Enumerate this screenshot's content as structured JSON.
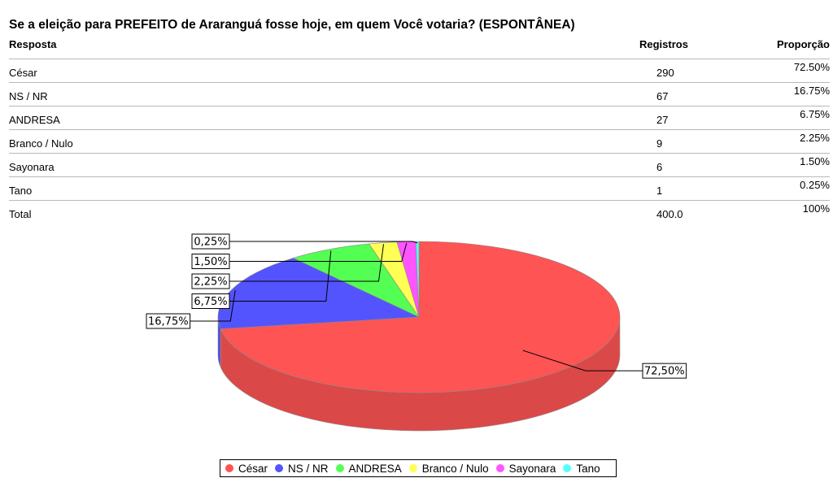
{
  "title": "Se a eleição para PREFEITO de Araranguá fosse hoje, em quem Você votaria? (ESPONTÂNEA)",
  "table": {
    "headers": [
      "Resposta",
      "Registros",
      "Proporção"
    ],
    "rows": [
      {
        "label": "César",
        "count": "290",
        "pct": "72.50%"
      },
      {
        "label": "NS / NR",
        "count": "67",
        "pct": "16.75%"
      },
      {
        "label": "ANDRESA",
        "count": "27",
        "pct": "6.75%"
      },
      {
        "label": "Branco / Nulo",
        "count": "9",
        "pct": "2.25%"
      },
      {
        "label": "Sayonara",
        "count": "6",
        "pct": "1.50%"
      },
      {
        "label": "Tano",
        "count": "1",
        "pct": "0.25%"
      }
    ],
    "total": {
      "label": "Total",
      "count": "400.0",
      "pct": "100%"
    }
  },
  "chart_data": {
    "type": "pie",
    "title": "Se a eleição para PREFEITO de Araranguá fosse hoje, em quem Você votaria? (ESPONTÂNEA)",
    "categories": [
      "César",
      "NS / NR",
      "ANDRESA",
      "Branco / Nulo",
      "Sayonara",
      "Tano"
    ],
    "values": [
      72.5,
      16.75,
      6.75,
      2.25,
      1.5,
      0.25
    ],
    "data_labels": [
      "72,50%",
      "16,75%",
      "6,75%",
      "2,25%",
      "1,50%",
      "0,25%"
    ],
    "colors": [
      "#ff5454",
      "#5454ff",
      "#54ff54",
      "#ffff54",
      "#ff54ff",
      "#54ffff"
    ],
    "legend_position": "bottom"
  }
}
